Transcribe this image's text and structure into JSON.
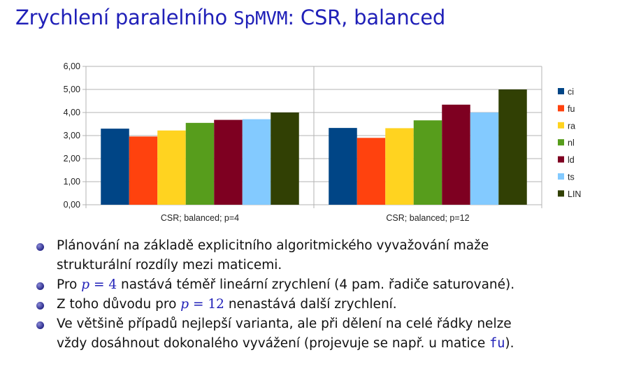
{
  "title": {
    "prefix": "Zrychlení paralelního ",
    "code": "SpMVM",
    "suffix": ": CSR, balanced"
  },
  "chart_data": {
    "type": "bar",
    "ylim": [
      0,
      6
    ],
    "yticks": [
      "0,00",
      "1,00",
      "2,00",
      "3,00",
      "4,00",
      "5,00",
      "6,00"
    ],
    "grid": true,
    "legend_position": "right",
    "groups": [
      {
        "label": "CSR; balanced; p=4",
        "values": [
          3.3,
          2.96,
          3.22,
          3.55,
          3.68,
          3.71,
          4.0
        ]
      },
      {
        "label": "CSR; balanced; p=12",
        "values": [
          3.33,
          2.9,
          3.32,
          3.66,
          4.34,
          4.0,
          5.0
        ]
      }
    ],
    "series": [
      {
        "name": "ci",
        "color": "#004586"
      },
      {
        "name": "fu",
        "color": "#ff420e"
      },
      {
        "name": "ra",
        "color": "#ffd320"
      },
      {
        "name": "nl",
        "color": "#579d1c"
      },
      {
        "name": "ld",
        "color": "#7e0021"
      },
      {
        "name": "ts",
        "color": "#83caff"
      },
      {
        "name": "LIN",
        "color": "#314004"
      }
    ]
  },
  "bullets": {
    "b1": {
      "line1": "Plánování na základě explicitního algoritmického vyvažování maže",
      "line2": "strukturální rozdíly mezi maticemi."
    },
    "b2": {
      "pre": "Pro ",
      "math": "p",
      "eq": " = ",
      "num": "4",
      "post": " nastává téměř lineární zrychlení (4 pam. řadiče saturované)."
    },
    "b3": {
      "pre": "Z toho důvodu pro ",
      "math": "p",
      "eq": " = ",
      "num": "12",
      "post": " nenastává další zrychlení."
    },
    "b4": {
      "line1": "Ve většině případů nejlepší varianta, ale při dělení na celé řádky nelze",
      "line2_pre": "vždy dosáhnout dokonalého vyvážení (projevuje se např. u matice ",
      "code": "fu",
      "line2_post": ")."
    }
  }
}
